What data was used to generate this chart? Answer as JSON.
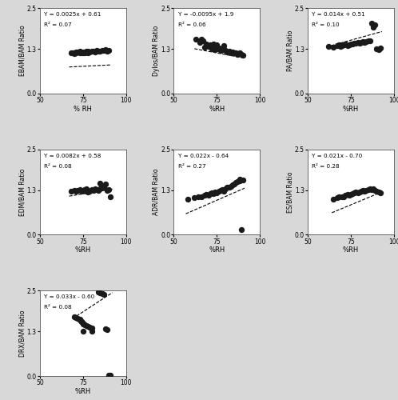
{
  "panels": [
    {
      "ylabel": "EBAM/BAM Ratio",
      "xlabel": "% RH",
      "eq": "Y = 0.0025x + 0.61",
      "r2": "R² = 0.07",
      "slope": 0.0025,
      "intercept": 0.61,
      "x": [
        68,
        69,
        70,
        71,
        71,
        72,
        73,
        73,
        74,
        75,
        75,
        76,
        77,
        77,
        78,
        78,
        79,
        80,
        81,
        82,
        83,
        84,
        85,
        86,
        87,
        88,
        89,
        90
      ],
      "y": [
        1.18,
        1.2,
        1.17,
        1.22,
        1.19,
        1.21,
        1.18,
        1.23,
        1.2,
        1.22,
        1.19,
        1.2,
        1.23,
        1.21,
        1.24,
        1.2,
        1.22,
        1.23,
        1.24,
        1.22,
        1.25,
        1.23,
        1.24,
        1.25,
        1.26,
        1.28,
        1.24,
        1.25
      ]
    },
    {
      "ylabel": "Dylos/BAM Ratio",
      "xlabel": "%RH",
      "eq": "Y = -0.0095x + 1.9",
      "r2": "R² = 0.06",
      "slope": -0.0095,
      "intercept": 1.9,
      "x": [
        63,
        65,
        66,
        67,
        68,
        69,
        70,
        71,
        72,
        73,
        73,
        74,
        75,
        75,
        76,
        77,
        78,
        79,
        79,
        80,
        81,
        82,
        83,
        84,
        85,
        86,
        87,
        88,
        89,
        90
      ],
      "y": [
        1.58,
        1.5,
        1.6,
        1.55,
        1.35,
        1.45,
        1.38,
        1.42,
        1.3,
        1.35,
        1.45,
        1.28,
        1.3,
        1.42,
        1.32,
        1.25,
        1.28,
        1.3,
        1.4,
        1.25,
        1.22,
        1.24,
        1.2,
        1.22,
        1.18,
        1.2,
        1.15,
        1.18,
        1.15,
        1.12
      ]
    },
    {
      "ylabel": "PA/BAM Ratio",
      "xlabel": "%RH",
      "eq": "Y = 0.014x + 0.51",
      "r2": "R² = 0.10",
      "slope": 0.014,
      "intercept": 0.51,
      "x": [
        62,
        65,
        67,
        68,
        69,
        70,
        71,
        72,
        73,
        74,
        75,
        76,
        77,
        78,
        79,
        80,
        81,
        82,
        83,
        84,
        85,
        86,
        87,
        88,
        89,
        90,
        91,
        92
      ],
      "y": [
        1.38,
        1.35,
        1.4,
        1.42,
        1.38,
        1.4,
        1.42,
        1.44,
        1.4,
        1.42,
        1.44,
        1.45,
        1.47,
        1.48,
        1.5,
        1.48,
        1.5,
        1.52,
        1.5,
        1.52,
        1.54,
        1.55,
        2.05,
        1.95,
        2.0,
        1.3,
        1.28,
        1.32
      ]
    },
    {
      "ylabel": "EDM/BAM Ratio",
      "xlabel": "%RH",
      "eq": "Y = 0.0082x + 0.58",
      "r2": "R² = 0.08",
      "slope": 0.0082,
      "intercept": 0.58,
      "x": [
        68,
        70,
        71,
        72,
        73,
        74,
        75,
        76,
        77,
        77,
        78,
        78,
        79,
        80,
        81,
        82,
        83,
        84,
        85,
        85,
        86,
        87,
        88,
        89,
        90,
        91
      ],
      "y": [
        1.28,
        1.3,
        1.28,
        1.3,
        1.32,
        1.28,
        1.3,
        1.32,
        1.28,
        1.35,
        1.25,
        1.3,
        1.28,
        1.32,
        1.3,
        1.35,
        1.32,
        1.3,
        1.35,
        1.5,
        1.38,
        1.4,
        1.48,
        1.3,
        1.32,
        1.1
      ]
    },
    {
      "ylabel": "ADR/BAM Ratio",
      "xlabel": "%RH",
      "eq": "Y = 0.022x - 0.64",
      "r2": "R² = 0.27",
      "slope": 0.022,
      "intercept": -0.64,
      "x": [
        58,
        62,
        64,
        66,
        68,
        69,
        70,
        71,
        72,
        73,
        74,
        75,
        76,
        77,
        78,
        79,
        80,
        81,
        82,
        83,
        84,
        85,
        86,
        87,
        88,
        89,
        90,
        88
      ],
      "y": [
        1.05,
        1.08,
        1.1,
        1.12,
        1.15,
        1.18,
        1.15,
        1.2,
        1.22,
        1.2,
        1.25,
        1.22,
        1.28,
        1.3,
        1.32,
        1.28,
        1.35,
        1.38,
        1.4,
        1.42,
        1.45,
        1.48,
        1.52,
        1.55,
        1.58,
        0.15,
        1.6,
        1.62
      ]
    },
    {
      "ylabel": "ES/BAM Ratio",
      "xlabel": "%RH",
      "eq": "Y = 0.021x - 0.70",
      "r2": "R² = 0.28",
      "slope": 0.021,
      "intercept": -0.7,
      "x": [
        65,
        67,
        68,
        70,
        71,
        72,
        73,
        74,
        75,
        76,
        77,
        78,
        79,
        80,
        81,
        82,
        83,
        84,
        85,
        86,
        87,
        88,
        89,
        90,
        91,
        92
      ],
      "y": [
        1.05,
        1.08,
        1.1,
        1.1,
        1.12,
        1.15,
        1.18,
        1.15,
        1.18,
        1.2,
        1.22,
        1.25,
        1.22,
        1.25,
        1.28,
        1.3,
        1.28,
        1.3,
        1.32,
        1.35,
        1.32,
        1.35,
        1.3,
        1.28,
        1.25,
        1.22
      ]
    },
    {
      "ylabel": "DRX/BAM Ratio",
      "xlabel": "%RH",
      "eq": "Y = 0.033x - 0.60",
      "r2": "R² = 0.08",
      "slope": 0.033,
      "intercept": -0.6,
      "x": [
        70,
        71,
        72,
        73,
        73,
        74,
        74,
        75,
        75,
        76,
        77,
        78,
        79,
        80,
        84,
        85,
        86,
        87,
        88,
        89,
        75,
        80,
        90,
        91
      ],
      "y": [
        1.72,
        1.7,
        1.68,
        1.65,
        1.63,
        1.6,
        1.58,
        1.55,
        1.52,
        1.5,
        1.48,
        1.45,
        1.42,
        1.4,
        2.45,
        2.42,
        2.4,
        2.38,
        1.38,
        1.35,
        1.3,
        1.32,
        0.02,
        0.02
      ]
    }
  ],
  "xlim": [
    50,
    100
  ],
  "ylim": [
    0.0,
    2.5
  ],
  "xticks": [
    50,
    75,
    100
  ],
  "yticks": [
    0.0,
    1.3,
    2.5
  ],
  "marker_color": "#1a1a1a",
  "marker_size": 28,
  "line_color": "black",
  "bg_color": "#d8d8d8",
  "panel_bg": "white"
}
